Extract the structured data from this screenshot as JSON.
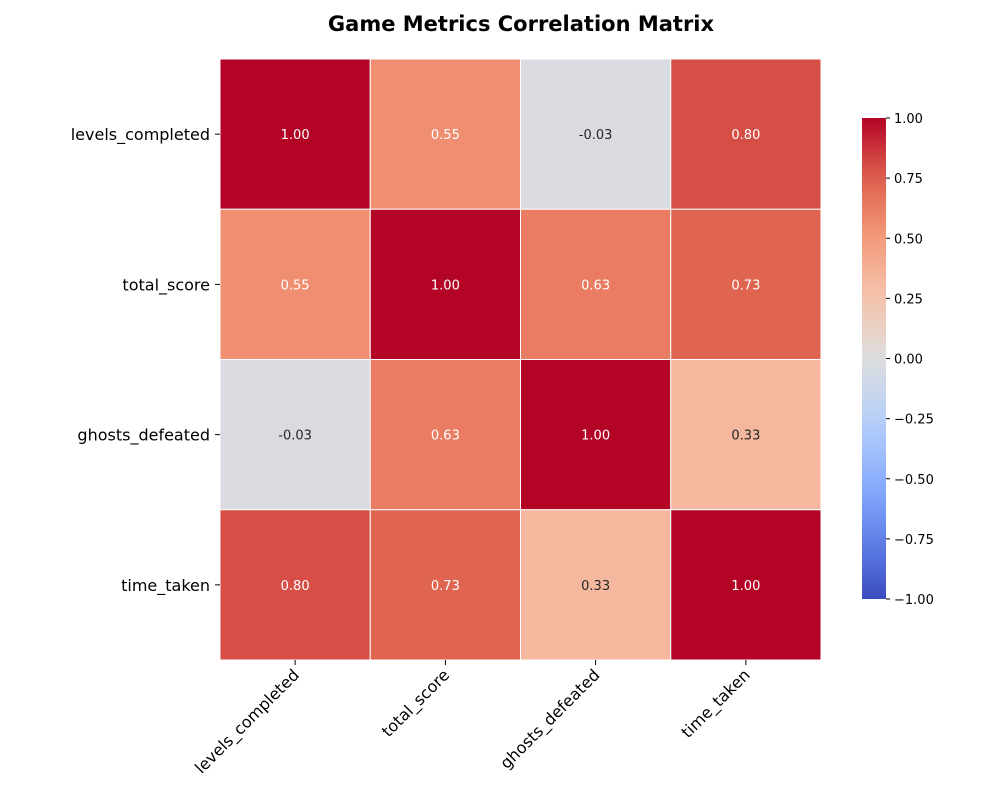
{
  "chart_data": {
    "type": "heatmap",
    "title": "Game Metrics Correlation Matrix",
    "rows": [
      "levels_completed",
      "total_score",
      "ghosts_defeated",
      "time_taken"
    ],
    "columns": [
      "levels_completed",
      "total_score",
      "ghosts_defeated",
      "time_taken"
    ],
    "values": [
      [
        1.0,
        0.55,
        -0.03,
        0.8
      ],
      [
        0.55,
        1.0,
        0.63,
        0.73
      ],
      [
        -0.03,
        0.63,
        1.0,
        0.33
      ],
      [
        0.8,
        0.73,
        0.33,
        1.0
      ]
    ],
    "value_labels": [
      [
        "1.00",
        "0.55",
        "-0.03",
        "0.80"
      ],
      [
        "0.55",
        "1.00",
        "0.63",
        "0.73"
      ],
      [
        "-0.03",
        "0.63",
        "1.00",
        "0.33"
      ],
      [
        "0.80",
        "0.73",
        "0.33",
        "1.00"
      ]
    ],
    "colormap": "coolwarm",
    "vmin": -1.0,
    "vmax": 1.0,
    "colorbar": {
      "ticks": [
        1.0,
        0.75,
        0.5,
        0.25,
        0.0,
        -0.25,
        -0.5,
        -0.75,
        -1.0
      ],
      "tick_labels": [
        "1.00",
        "0.75",
        "0.50",
        "0.25",
        "0.00",
        "−0.25",
        "−0.50",
        "−0.75",
        "−1.00"
      ]
    },
    "colors": {
      "low": "#3b4cc0",
      "mid": "#dddddd",
      "high": "#b40426"
    }
  }
}
